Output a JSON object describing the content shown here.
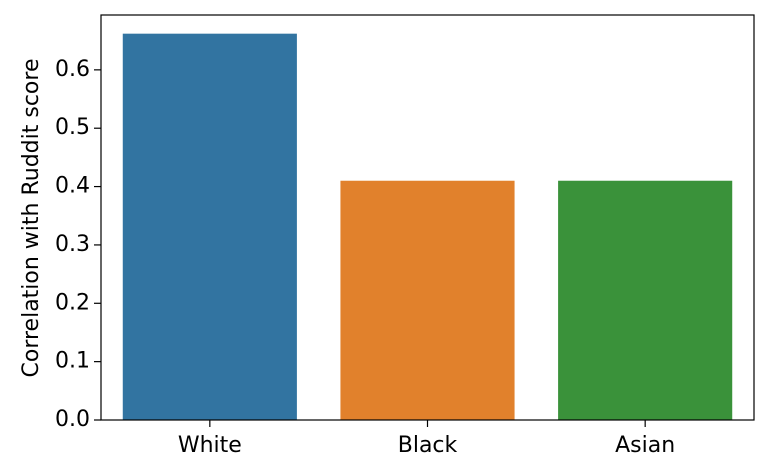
{
  "chart_data": {
    "type": "bar",
    "ylabel": "Correlation with Ruddit score",
    "categories": [
      "White",
      "Black",
      "Asian"
    ],
    "values": [
      0.662,
      0.41,
      0.41
    ],
    "colors": [
      "#3274a1",
      "#e1812c",
      "#3a923a"
    ],
    "ylim": [
      0,
      0.694
    ],
    "yticks": [
      {
        "value": 0,
        "label": "0.0"
      },
      0.1,
      0.2,
      0.3,
      0.4,
      0.5,
      0.6
    ],
    "grid": false
  }
}
